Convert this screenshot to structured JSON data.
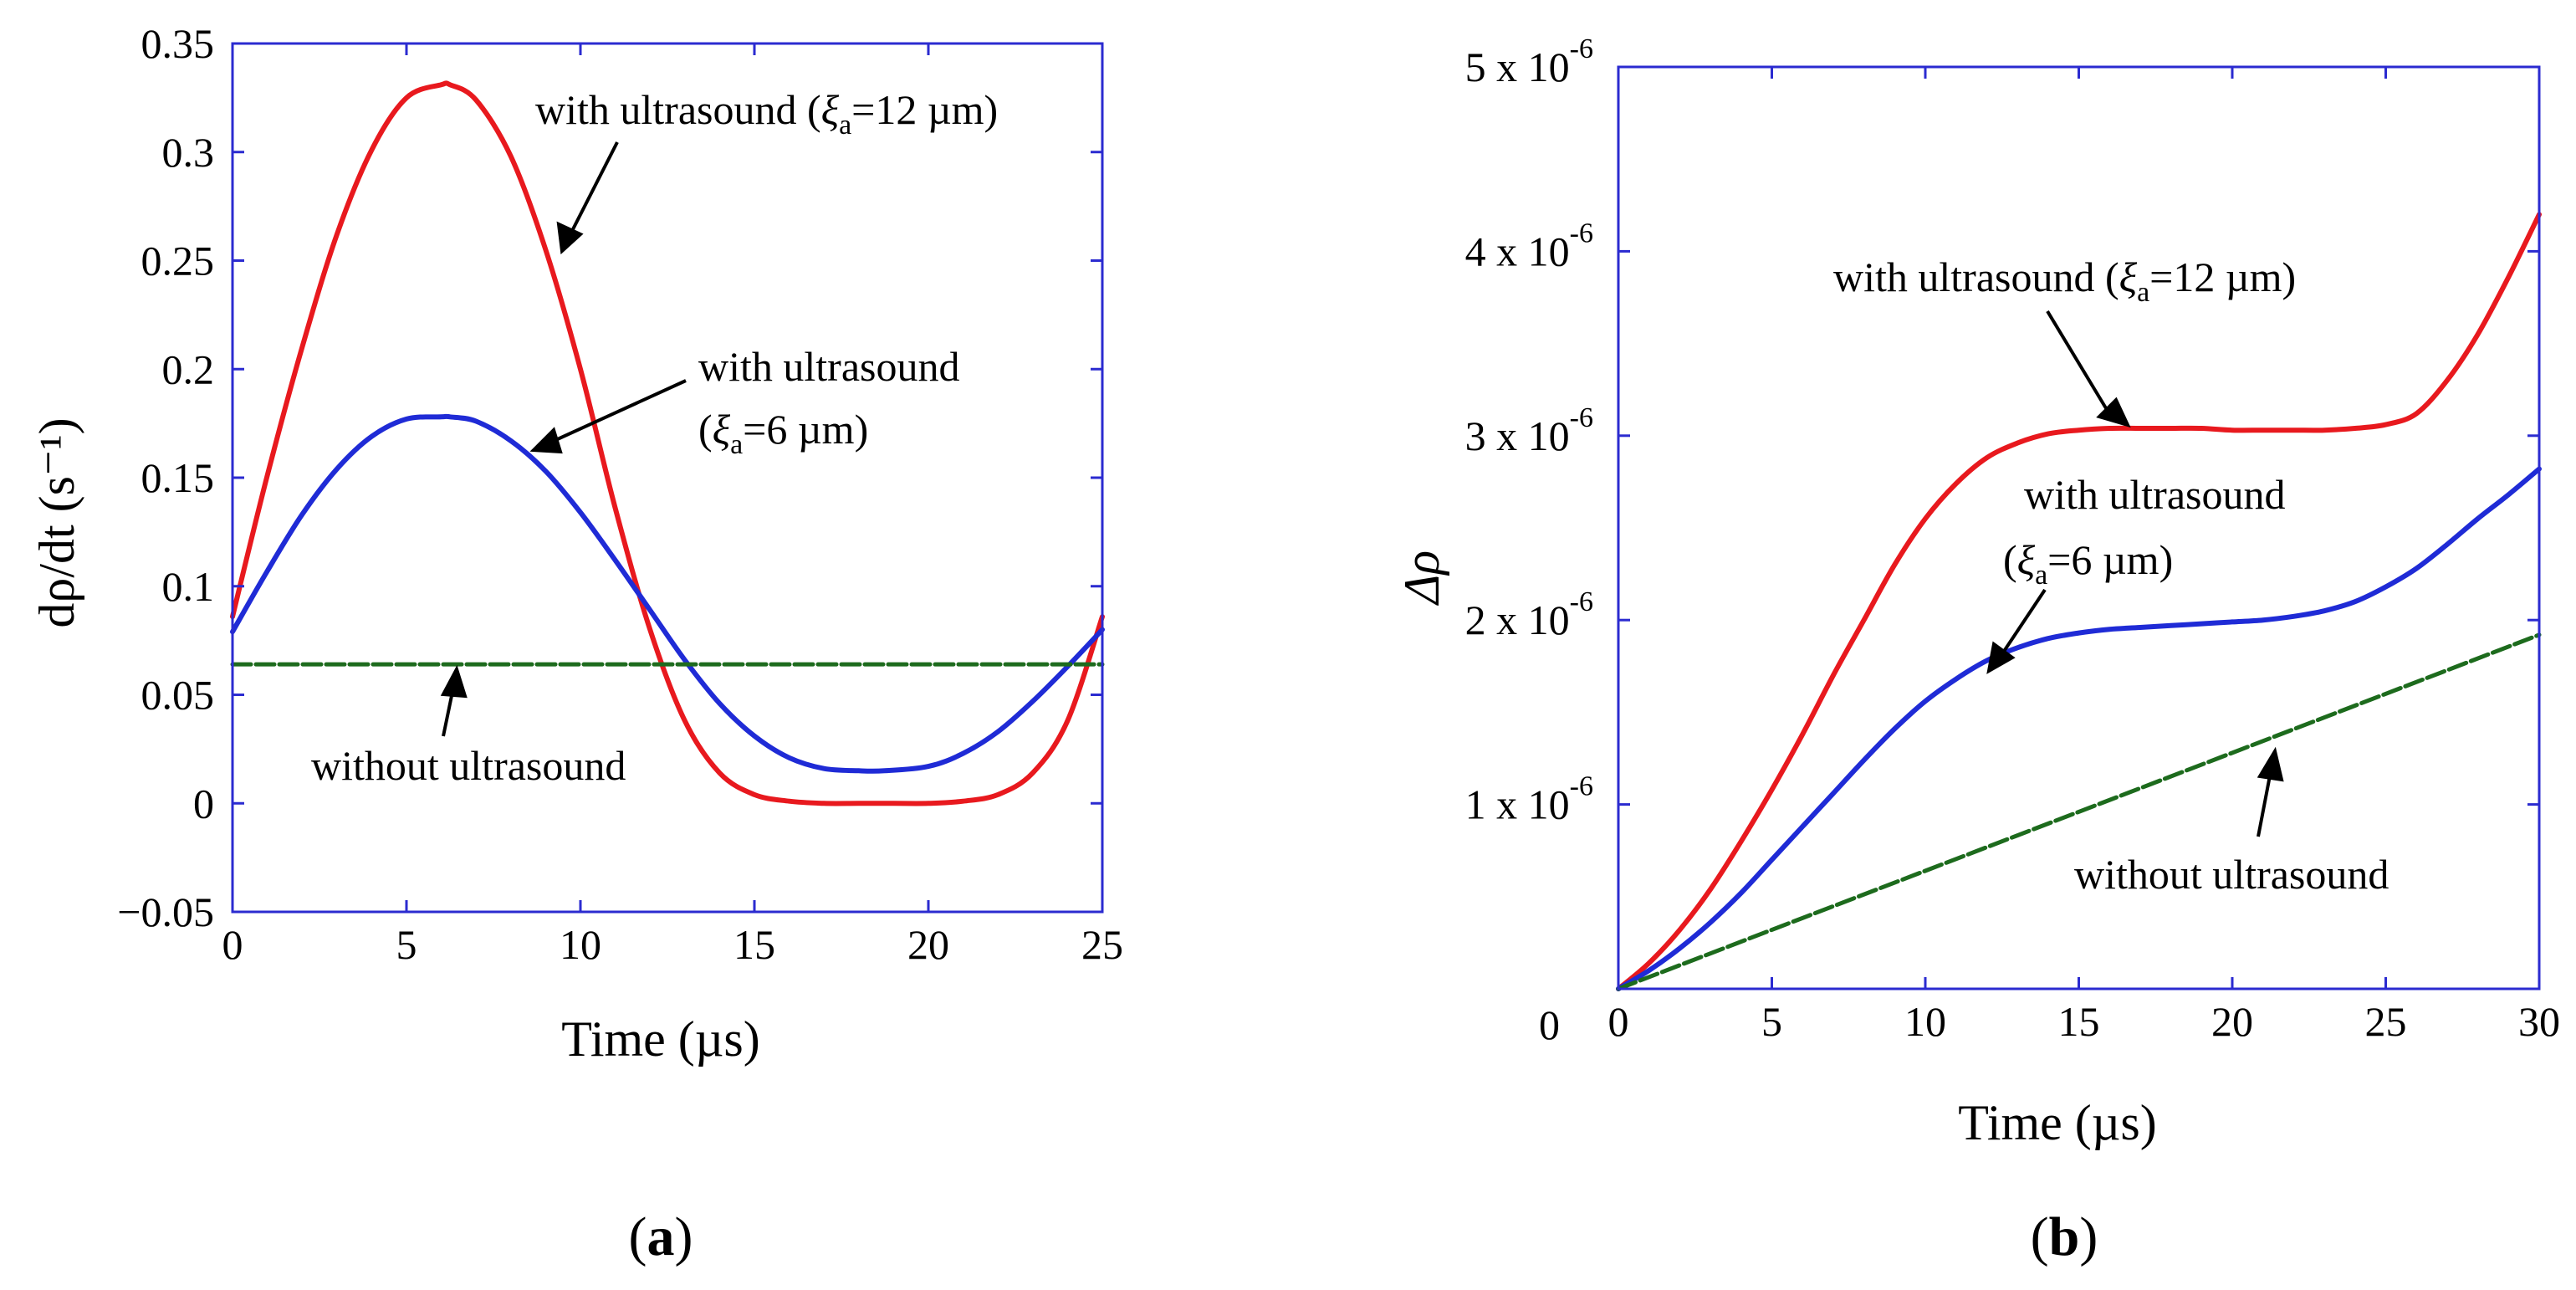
{
  "chart_data": [
    {
      "type": "line",
      "panel_label": "a",
      "title": "",
      "xlabel": "Time (µs)",
      "ylabel": "dρ/dt (s⁻¹)",
      "xlim": [
        0,
        25
      ],
      "ylim": [
        -0.05,
        0.35
      ],
      "xticks": [
        0,
        5,
        10,
        15,
        20,
        25
      ],
      "xtick_labels": [
        "0",
        "5",
        "10",
        "15",
        "20",
        "25"
      ],
      "yticks": [
        -0.05,
        0,
        0.05,
        0.1,
        0.15,
        0.2,
        0.25,
        0.3,
        0.35
      ],
      "ytick_labels": [
        "−0.05",
        "0",
        "0.05",
        "0.1",
        "0.15",
        "0.2",
        "0.25",
        "0.3",
        "0.35"
      ],
      "grid": false,
      "series": [
        {
          "name": "with ultrasound (ξa=12 µm)",
          "color": "#e8191e",
          "x": [
            0,
            1,
            2,
            3,
            4,
            5,
            6,
            6.25,
            7,
            8,
            9,
            10,
            11,
            12,
            13,
            14,
            15,
            16,
            17,
            18,
            19,
            20,
            21,
            22,
            23,
            24,
            25
          ],
          "y": [
            0.086,
            0.151,
            0.21,
            0.262,
            0.301,
            0.325,
            0.331,
            0.331,
            0.324,
            0.298,
            0.255,
            0.2,
            0.136,
            0.08,
            0.038,
            0.014,
            0.004,
            0.001,
            0.0,
            0.0,
            0.0,
            0.0,
            0.001,
            0.004,
            0.014,
            0.038,
            0.086
          ]
        },
        {
          "name": "with ultrasound (ξa=6 µm)",
          "color": "#1f2bd6",
          "x": [
            0,
            1,
            2,
            3,
            4,
            5,
            6,
            6.25,
            7,
            8,
            9,
            10,
            11,
            12,
            13,
            14,
            15,
            16,
            17,
            18,
            18.75,
            20,
            21,
            22,
            23,
            24,
            25
          ],
          "y": [
            0.079,
            0.107,
            0.133,
            0.154,
            0.169,
            0.177,
            0.178,
            0.178,
            0.176,
            0.167,
            0.153,
            0.134,
            0.112,
            0.089,
            0.066,
            0.046,
            0.031,
            0.021,
            0.016,
            0.015,
            0.015,
            0.017,
            0.023,
            0.033,
            0.047,
            0.063,
            0.08
          ]
        },
        {
          "name": "without ultrasound",
          "color": "#1d6b1d",
          "dashed": true,
          "x": [
            0,
            25
          ],
          "y": [
            0.064,
            0.064
          ]
        }
      ],
      "annotations": [
        {
          "text": "with ultrasound (",
          "symbol": "ξ",
          "subscript": "a",
          "rest": "=12 µm)"
        },
        {
          "text": "with ultrasound"
        },
        {
          "text": "(",
          "symbol": "ξ",
          "subscript": "a",
          "rest": "=6 µm)"
        },
        {
          "text": "without ultrasound"
        }
      ]
    },
    {
      "type": "line",
      "panel_label": "b",
      "title": "",
      "xlabel": "Time (µs)",
      "ylabel": "Δρ",
      "xlim": [
        0,
        30
      ],
      "ylim": [
        0,
        5e-06
      ],
      "xticks": [
        0,
        5,
        10,
        15,
        20,
        25,
        30
      ],
      "xtick_labels": [
        "0",
        "5",
        "10",
        "15",
        "20",
        "25",
        "30"
      ],
      "yticks": [
        0,
        1e-06,
        2e-06,
        3e-06,
        4e-06,
        5e-06
      ],
      "ytick_labels": [
        {
          "mantissa": "0",
          "exponent": ""
        },
        {
          "mantissa": "1 x 10",
          "exponent": "-6"
        },
        {
          "mantissa": "2 x 10",
          "exponent": "-6"
        },
        {
          "mantissa": "3 x 10",
          "exponent": "-6"
        },
        {
          "mantissa": "4 x 10",
          "exponent": "-6"
        },
        {
          "mantissa": "5 x 10",
          "exponent": "-6"
        }
      ],
      "grid": false,
      "series": [
        {
          "name": "with ultrasound (ξa=12 µm)",
          "color": "#e8191e",
          "x": [
            0,
            1,
            2,
            3,
            4,
            5,
            6,
            7,
            8,
            9,
            10,
            11,
            12,
            13,
            14,
            15,
            16,
            17,
            18,
            19,
            20,
            21,
            22,
            23,
            24,
            25,
            26,
            27,
            28,
            29,
            30
          ],
          "y": [
            0,
            1.4e-07,
            3.2e-07,
            5.4e-07,
            8e-07,
            1.08e-06,
            1.38e-06,
            1.7e-06,
            2e-06,
            2.3e-06,
            2.55e-06,
            2.74e-06,
            2.88e-06,
            2.96e-06,
            3.01e-06,
            3.03e-06,
            3.04e-06,
            3.04e-06,
            3.04e-06,
            3.04e-06,
            3.03e-06,
            3.03e-06,
            3.03e-06,
            3.03e-06,
            3.04e-06,
            3.06e-06,
            3.12e-06,
            3.3e-06,
            3.55e-06,
            3.86e-06,
            4.2e-06
          ]
        },
        {
          "name": "with ultrasound (ξa=6 µm)",
          "color": "#1f2bd6",
          "x": [
            0,
            1,
            2,
            3,
            4,
            5,
            6,
            7,
            8,
            9,
            10,
            11,
            12,
            13,
            14,
            15,
            16,
            17,
            18,
            19,
            20,
            21,
            22,
            23,
            24,
            25,
            26,
            27,
            28,
            29,
            30
          ],
          "y": [
            0,
            1e-07,
            2.2e-07,
            3.6e-07,
            5.2e-07,
            7e-07,
            8.8e-07,
            1.06e-06,
            1.24e-06,
            1.41e-06,
            1.56e-06,
            1.68e-06,
            1.78e-06,
            1.85e-06,
            1.9e-06,
            1.93e-06,
            1.95e-06,
            1.96e-06,
            1.97e-06,
            1.98e-06,
            1.99e-06,
            2e-06,
            2.02e-06,
            2.05e-06,
            2.1e-06,
            2.18e-06,
            2.28e-06,
            2.41e-06,
            2.55e-06,
            2.68e-06,
            2.82e-06
          ]
        },
        {
          "name": "without ultrasound",
          "color": "#1d6b1d",
          "dashed": true,
          "x": [
            0,
            30
          ],
          "y": [
            0,
            1.92e-06
          ]
        }
      ],
      "annotations": [
        {
          "text": "with ultrasound (",
          "symbol": "ξ",
          "subscript": "a",
          "rest": "=12 µm)"
        },
        {
          "text": "with ultrasound"
        },
        {
          "text": "(",
          "symbol": "ξ",
          "subscript": "a",
          "rest": "=6 µm)"
        },
        {
          "text": "without ultrasound"
        }
      ]
    }
  ]
}
